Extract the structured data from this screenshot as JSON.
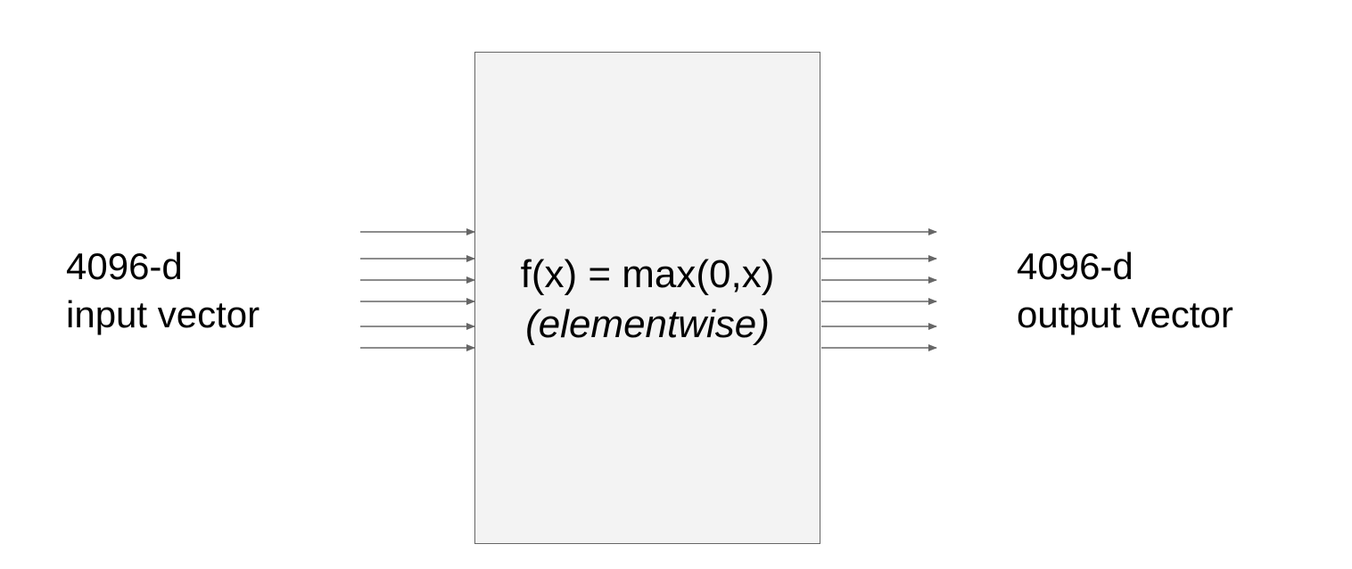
{
  "input": {
    "line1": "4096-d",
    "line2": "input vector"
  },
  "output": {
    "line1": "4096-d",
    "line2": "output vector"
  },
  "box": {
    "formula": "f(x) = max(0,x)",
    "note": "(elementwise)"
  },
  "arrows": {
    "input_count": 6,
    "output_count": 6,
    "color": "#666666"
  }
}
